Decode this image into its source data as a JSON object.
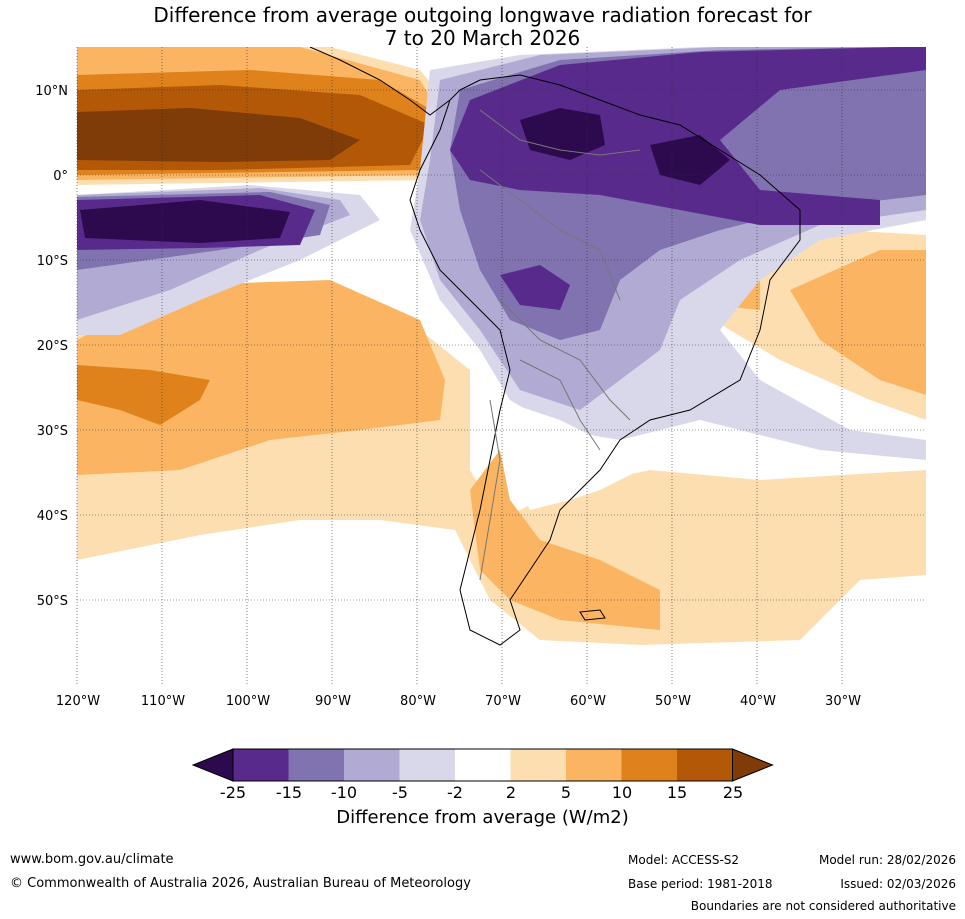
{
  "title_line1": "Difference from average outgoing longwave radiation forecast for",
  "title_line2": "7 to 20 March 2026",
  "map": {
    "lat_labels": [
      "10°N",
      "0°",
      "10°S",
      "20°S",
      "30°S",
      "40°S",
      "50°S"
    ],
    "lon_labels": [
      "120°W",
      "110°W",
      "100°W",
      "90°W",
      "80°W",
      "70°W",
      "60°W",
      "50°W",
      "40°W",
      "30°W"
    ]
  },
  "colorbar": {
    "ticks": [
      "-25",
      "-15",
      "-10",
      "-5",
      "-2",
      "2",
      "5",
      "10",
      "15",
      "25"
    ],
    "colors": [
      "#2d0a4e",
      "#582a8c",
      "#8172b0",
      "#b1aad2",
      "#d9d8ea",
      "#ffffff",
      "#fddeb0",
      "#fbb462",
      "#e0821c",
      "#b35807",
      "#7f3b08"
    ],
    "label": "Difference from average (W/m2)"
  },
  "footer": {
    "website": "www.bom.gov.au/climate",
    "copyright": "© Commonwealth of Australia 2026, Australian Bureau of Meteorology",
    "model": "Model: ACCESS-S2",
    "base_period": "Base period: 1981-2018",
    "model_run": "Model run: 28/02/2026",
    "issued": "Issued: 02/03/2026",
    "disclaimer": "Boundaries are not considered authoritative"
  }
}
